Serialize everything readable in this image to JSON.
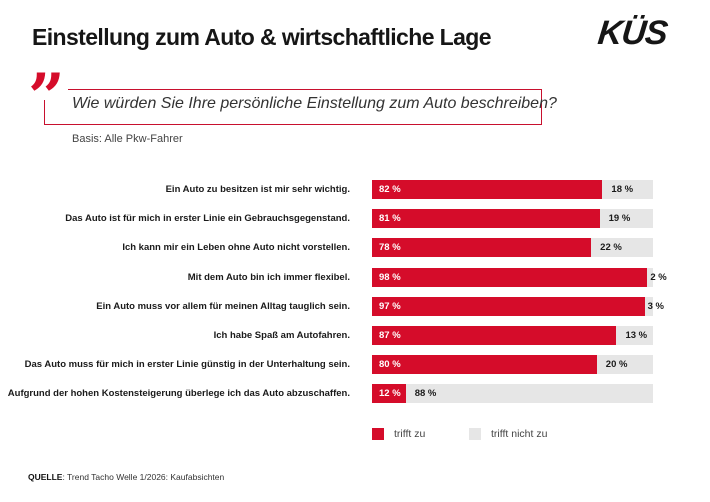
{
  "header": {
    "title": "Einstellung zum Auto & wirtschaftliche Lage",
    "logo": "KÜS"
  },
  "question": {
    "text": "Wie würden Sie Ihre persönliche Einstellung zum Auto beschreiben?",
    "basis": "Basis: Alle Pkw-Fahrer"
  },
  "chart_data": {
    "type": "bar",
    "orientation": "horizontal",
    "stacked": true,
    "xlim": [
      0,
      100
    ],
    "categories": [
      "Ein Auto zu besitzen ist mir sehr wichtig.",
      "Das Auto ist für mich in erster Linie ein Gebrauchsgegenstand.",
      "Ich kann mir ein Leben ohne Auto nicht vorstellen.",
      "Mit dem Auto bin ich immer flexibel.",
      "Ein Auto muss vor allem für meinen Alltag tauglich sein.",
      "Ich habe Spaß am Autofahren.",
      "Das Auto muss für mich in erster Linie günstig in der Unterhaltung sein.",
      "Aufgrund der hohen Kostensteigerung überlege ich das Auto abzuschaffen."
    ],
    "series": [
      {
        "name": "trifft zu",
        "color": "#d50c2a",
        "values": [
          82,
          81,
          78,
          98,
          97,
          87,
          80,
          12
        ]
      },
      {
        "name": "trifft nicht zu",
        "color": "#e6e6e6",
        "values": [
          18,
          19,
          22,
          2,
          3,
          13,
          20,
          88
        ]
      }
    ],
    "value_suffix": " %",
    "legend": "bottom"
  },
  "source": {
    "label": "QUELLE",
    "text": ": Trend Tacho Welle 1/2026: Kaufabsichten"
  }
}
